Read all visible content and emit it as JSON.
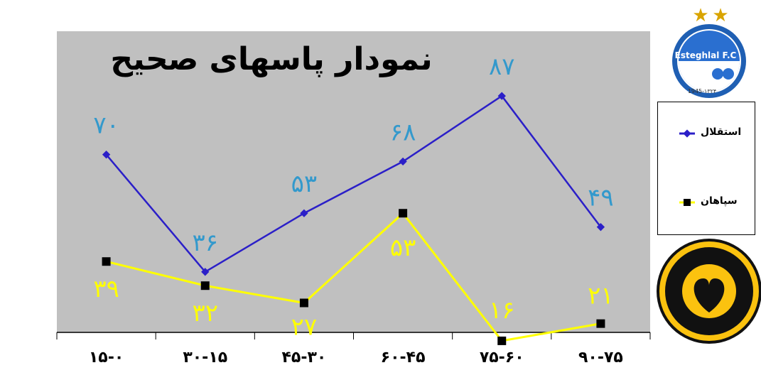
{
  "chart_data": {
    "type": "line",
    "title": "نمودار پاسهای صحیح",
    "categories": [
      "۱۵-۰",
      "۳۰-۱۵",
      "۴۵-۳۰",
      "۶۰-۴۵",
      "۷۵-۶۰",
      "۹۰-۷۵"
    ],
    "series": [
      {
        "name": "استقلال",
        "color": "#2b1fc8",
        "values": [
          70,
          36,
          53,
          68,
          87,
          49
        ],
        "labels": [
          "۷۰",
          "۳۶",
          "۵۳",
          "۶۸",
          "۸۷",
          "۴۹"
        ]
      },
      {
        "name": "سپاهان",
        "color": "#ffff00",
        "values": [
          39,
          32,
          27,
          53,
          16,
          21
        ],
        "labels": [
          "۳۹",
          "۳۲",
          "۲۷",
          "۵۳",
          "۱۶",
          "۲۱"
        ]
      }
    ],
    "ylim": [
      0,
      100
    ],
    "grid": false,
    "legend_position": "right",
    "plot_background": "#c0c0c0",
    "label_color_esteghlal": "#3399cc",
    "label_color_sepahan": "#ffff00"
  },
  "logos": {
    "esteghlal": {
      "text": "Esteghlal F.C",
      "year": "1945-۱۳۲۴",
      "icon": "esteghlal-logo"
    },
    "sepahan": {
      "icon": "sepahan-logo"
    }
  }
}
